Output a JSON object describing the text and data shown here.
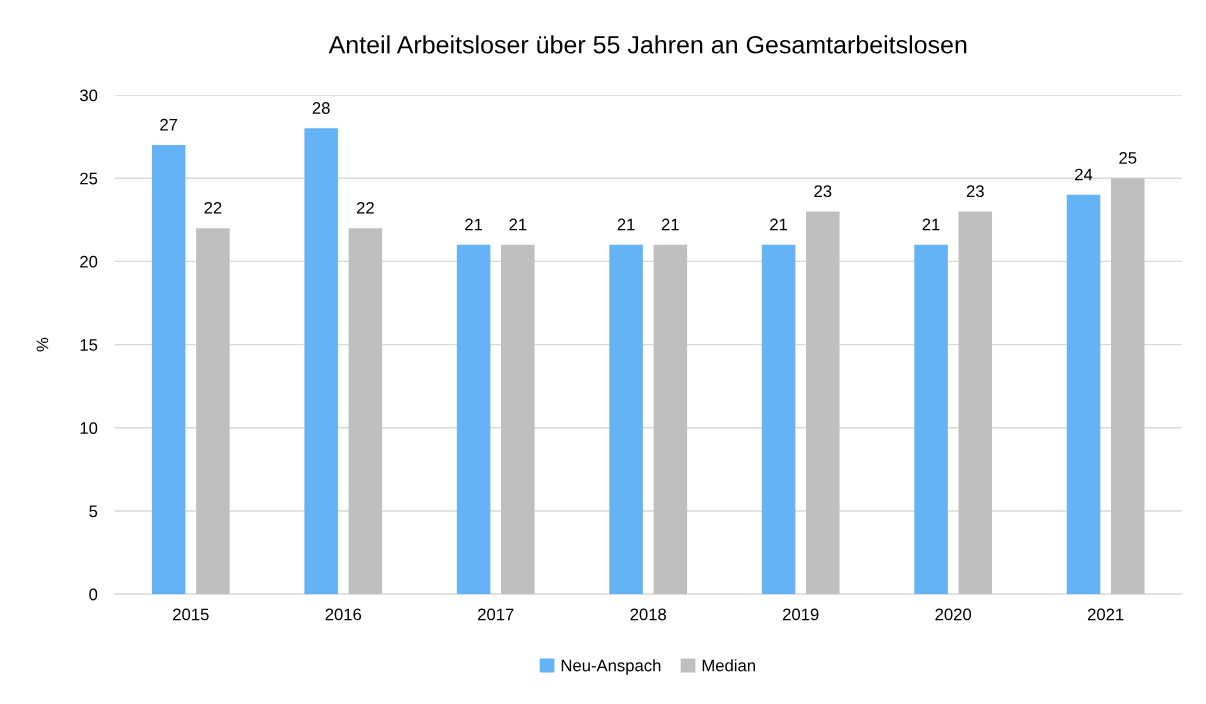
{
  "chart_data": {
    "type": "bar",
    "title": "Anteil Arbeitsloser über 55 Jahren an Gesamtarbeitslosen",
    "ylabel": "%",
    "categories": [
      "2015",
      "2016",
      "2017",
      "2018",
      "2019",
      "2020",
      "2021"
    ],
    "series": [
      {
        "name": "Neu-Anspach",
        "color": "#63b3f5",
        "values": [
          27,
          28,
          21,
          21,
          21,
          21,
          24
        ]
      },
      {
        "name": "Median",
        "color": "#bfbfbf",
        "values": [
          22,
          22,
          21,
          21,
          23,
          23,
          25
        ]
      }
    ],
    "ylim": [
      0,
      30
    ],
    "yticks": [
      0,
      5,
      10,
      15,
      20,
      25,
      30
    ],
    "grid": "y",
    "legend": "bottom",
    "data_labels": true
  }
}
